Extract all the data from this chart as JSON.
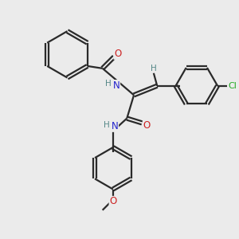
{
  "bg_color": "#ebebeb",
  "bond_color": "#2a2a2a",
  "bond_width": 1.6,
  "atom_colors": {
    "N": "#2222cc",
    "O": "#cc2222",
    "Cl": "#22aa22",
    "H": "#558888",
    "C": "#2a2a2a"
  },
  "font_size": 8.5,
  "fig_size": [
    3.0,
    3.0
  ],
  "dpi": 100,
  "xlim": [
    0,
    10
  ],
  "ylim": [
    0,
    10
  ]
}
